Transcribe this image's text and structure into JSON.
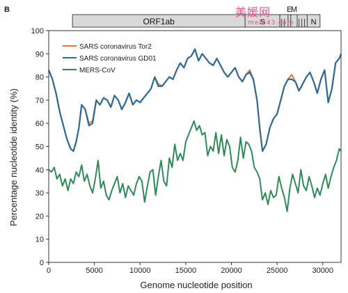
{
  "panel_letter": "B",
  "watermark": {
    "text": "美媛网",
    "url": "meili43.com"
  },
  "chart_data": {
    "type": "line",
    "xlabel": "Genome nucleotide position",
    "ylabel": "Percentage nucleotide identity (%)",
    "xlim": [
      0,
      32000
    ],
    "ylim": [
      0,
      100
    ],
    "xticks": [
      0,
      5000,
      10000,
      15000,
      20000,
      25000,
      30000
    ],
    "yticks": [
      0,
      10,
      20,
      30,
      40,
      50,
      60,
      70,
      80,
      90,
      100
    ],
    "legend_position": "top-left",
    "genome_map": {
      "segments": [
        {
          "label": "ORF1ab",
          "start": 2600,
          "end": 21500
        },
        {
          "label": "S",
          "start": 21500,
          "end": 25300
        },
        {
          "label": "",
          "start": 25300,
          "end": 26200
        },
        {
          "label": "E",
          "start": 26200,
          "end": 26500
        },
        {
          "label": "M",
          "start": 26500,
          "end": 27200
        },
        {
          "label": "",
          "start": 27200,
          "end": 28300
        },
        {
          "label": "N",
          "start": 28300,
          "end": 29700
        }
      ],
      "visible_labels": [
        "ORF1ab",
        "S",
        "E",
        "M",
        "N"
      ]
    },
    "series": [
      {
        "name": "SARS coronavirus Tor2",
        "color": "#e8743b",
        "x": [
          0,
          400,
          800,
          1200,
          1600,
          2000,
          2400,
          2700,
          3000,
          3300,
          3600,
          4000,
          4400,
          4800,
          5200,
          5600,
          6000,
          6400,
          6800,
          7200,
          7600,
          8000,
          8400,
          8800,
          9200,
          9600,
          10000,
          10400,
          10800,
          11200,
          11600,
          12000,
          12400,
          12800,
          13200,
          13600,
          14000,
          14400,
          14800,
          15200,
          15600,
          16000,
          16400,
          16800,
          17200,
          17600,
          18000,
          18400,
          18800,
          19200,
          19600,
          20000,
          20400,
          20800,
          21200,
          21600,
          22000,
          22400,
          22800,
          23100,
          23400,
          23800,
          24200,
          24600,
          25000,
          25400,
          25800,
          26200,
          26600,
          27000,
          27400,
          27800,
          28200,
          28600,
          29000,
          29400,
          29800,
          30200,
          30600,
          31000,
          31400,
          31800,
          32000
        ],
        "y": [
          83,
          79,
          73,
          65,
          59,
          53,
          49,
          48,
          52,
          58,
          68,
          66,
          60,
          61,
          70,
          68,
          71,
          70,
          67,
          72,
          70,
          66,
          69,
          73,
          68,
          70,
          69,
          71,
          73,
          75,
          80,
          77,
          76,
          78,
          80,
          79,
          83,
          86,
          84,
          88,
          89,
          92,
          87,
          90,
          88,
          86,
          85,
          88,
          85,
          82,
          80,
          82,
          84,
          80,
          78,
          81,
          83,
          79,
          70,
          58,
          48,
          51,
          58,
          62,
          64,
          70,
          76,
          79,
          81,
          78,
          74,
          77,
          80,
          82,
          78,
          73,
          79,
          83,
          69,
          75,
          86,
          88,
          90
        ]
      },
      {
        "name": "SARS coronavirus GD01",
        "color": "#2e6a92",
        "x": [
          0,
          400,
          800,
          1200,
          1600,
          2000,
          2400,
          2700,
          3000,
          3300,
          3600,
          4000,
          4400,
          4800,
          5200,
          5600,
          6000,
          6400,
          6800,
          7200,
          7600,
          8000,
          8400,
          8800,
          9200,
          9600,
          10000,
          10400,
          10800,
          11200,
          11600,
          12000,
          12400,
          12800,
          13200,
          13600,
          14000,
          14400,
          14800,
          15200,
          15600,
          16000,
          16400,
          16800,
          17200,
          17600,
          18000,
          18400,
          18800,
          19200,
          19600,
          20000,
          20400,
          20800,
          21200,
          21600,
          22000,
          22400,
          22800,
          23100,
          23400,
          23800,
          24200,
          24600,
          25000,
          25400,
          25800,
          26200,
          26600,
          27000,
          27400,
          27800,
          28200,
          28600,
          29000,
          29400,
          29800,
          30200,
          30600,
          31000,
          31400,
          31800,
          32000
        ],
        "y": [
          83,
          79,
          73,
          65,
          59,
          53,
          49,
          48,
          52,
          58,
          68,
          66,
          59,
          60,
          70,
          68,
          71,
          70,
          67,
          72,
          70,
          66,
          69,
          73,
          68,
          70,
          69,
          71,
          73,
          75,
          80,
          76,
          76,
          78,
          80,
          79,
          83,
          86,
          84,
          88,
          89,
          92,
          87,
          90,
          88,
          86,
          85,
          88,
          85,
          82,
          80,
          82,
          84,
          80,
          78,
          81,
          82,
          79,
          70,
          58,
          48,
          51,
          58,
          62,
          64,
          70,
          76,
          79,
          79,
          78,
          74,
          77,
          80,
          82,
          78,
          73,
          79,
          83,
          69,
          75,
          86,
          88,
          90
        ]
      },
      {
        "name": "MERS-CoV",
        "color": "#2e8b57",
        "x": [
          0,
          300,
          600,
          900,
          1200,
          1500,
          1800,
          2100,
          2400,
          2700,
          3000,
          3300,
          3600,
          3900,
          4200,
          4500,
          4800,
          5100,
          5400,
          5700,
          6000,
          6300,
          6600,
          6900,
          7200,
          7500,
          7800,
          8100,
          8400,
          8700,
          9000,
          9300,
          9600,
          9900,
          10200,
          10500,
          10800,
          11100,
          11400,
          11700,
          12000,
          12300,
          12600,
          12900,
          13200,
          13500,
          13800,
          14100,
          14400,
          14700,
          15000,
          15300,
          15600,
          15900,
          16200,
          16500,
          16800,
          17100,
          17400,
          17700,
          18000,
          18300,
          18600,
          18900,
          19200,
          19500,
          19800,
          20100,
          20400,
          20700,
          21000,
          21300,
          21600,
          21900,
          22200,
          22500,
          22800,
          23100,
          23400,
          23700,
          24000,
          24300,
          24600,
          24900,
          25200,
          25500,
          25800,
          26100,
          26400,
          26700,
          27000,
          27300,
          27600,
          27900,
          28200,
          28500,
          28800,
          29100,
          29400,
          29700,
          30000,
          30300,
          30600,
          30900,
          31200,
          31500,
          31800,
          32000
        ],
        "y": [
          40,
          39,
          41,
          36,
          38,
          33,
          36,
          31,
          36,
          34,
          39,
          37,
          42,
          35,
          38,
          33,
          30,
          36,
          44,
          32,
          35,
          29,
          27,
          31,
          34,
          37,
          30,
          34,
          28,
          33,
          31,
          29,
          34,
          37,
          35,
          26,
          33,
          39,
          40,
          29,
          37,
          44,
          35,
          33,
          45,
          41,
          51,
          44,
          47,
          44,
          52,
          55,
          58,
          61,
          57,
          59,
          55,
          56,
          46,
          50,
          48,
          56,
          47,
          55,
          46,
          53,
          50,
          41,
          39,
          44,
          54,
          45,
          52,
          51,
          48,
          41,
          39,
          36,
          27,
          30,
          25,
          31,
          28,
          29,
          37,
          32,
          28,
          22,
          32,
          38,
          34,
          30,
          40,
          33,
          31,
          37,
          33,
          28,
          32,
          29,
          34,
          38,
          32,
          37,
          41,
          44,
          49,
          48
        ]
      }
    ]
  }
}
